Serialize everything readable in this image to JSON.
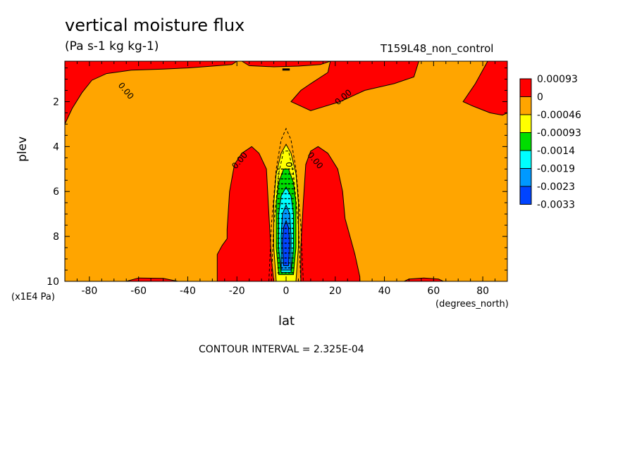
{
  "header": {
    "title": "vertical moisture flux",
    "units": "(Pa s-1 kg kg-1)",
    "dataset": "T159L48_non_control"
  },
  "footer": {
    "contour_interval": "CONTOUR INTERVAL = 2.325E-04"
  },
  "chart_data": {
    "type": "heatmap",
    "xlabel": "lat",
    "x_units": "(degrees_north)",
    "ylabel": "plev",
    "y_units": "(x1E4 Pa)",
    "xlim": [
      -90,
      90
    ],
    "ylim": [
      0.2,
      10
    ],
    "y_inverted": true,
    "x_ticks": [
      -80,
      -60,
      -40,
      -20,
      0,
      20,
      40,
      60,
      80
    ],
    "x_tick_labels": [
      "-80",
      "-60",
      "-40",
      "-20",
      "0",
      "20",
      "40",
      "60",
      "80"
    ],
    "y_ticks": [
      2,
      4,
      6,
      8,
      10
    ],
    "y_tick_labels": [
      "2",
      "4",
      "6",
      "8",
      "10"
    ],
    "background_color": "#ffa500",
    "colorbar": {
      "labels": [
        "0.00093",
        "0",
        "-0.00046",
        "-0.00093",
        "-0.0014",
        "-0.0019",
        "-0.0023",
        "-0.0033"
      ],
      "colors": [
        "#ff0000",
        "#ffa500",
        "#ffff00",
        "#00dd00",
        "#00ffff",
        "#0099ff",
        "#0044ff"
      ]
    },
    "contour_labels": [
      {
        "text": "0.00",
        "lat": -18,
        "plev": 4.7,
        "angle": -50
      },
      {
        "text": "0.00",
        "lat": 11,
        "plev": 4.7,
        "angle": 50
      },
      {
        "text": "0.00",
        "lat": -66,
        "plev": 1.6,
        "angle": 50
      },
      {
        "text": "0.00",
        "lat": 24,
        "plev": 1.9,
        "angle": -40
      },
      {
        "text": "0",
        "lat": 0,
        "plev": 4.8,
        "angle": 90
      }
    ]
  }
}
